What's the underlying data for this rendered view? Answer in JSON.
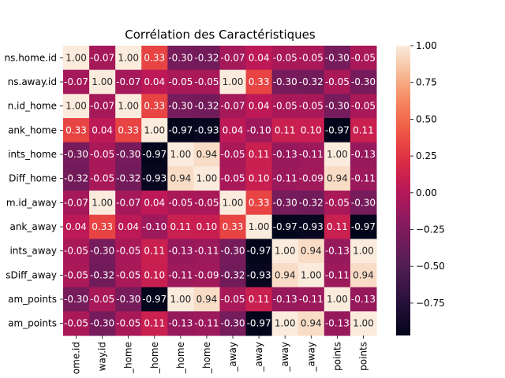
{
  "chart_data": {
    "type": "heatmap",
    "title": "Corrélation des Caractéristiques",
    "row_labels": [
      "ns.home.id",
      "ns.away.id",
      "n.id_home",
      "ank_home",
      "ints_home",
      "Diff_home",
      "m.id_away",
      "ank_away",
      "ints_away",
      "sDiff_away",
      "am_points",
      "am_points"
    ],
    "col_labels": [
      "ome.id",
      "way.id",
      "_home",
      "_home",
      "_home",
      "_home",
      "_away",
      "_away",
      "_away",
      "_away",
      "points",
      "points"
    ],
    "values": [
      [
        1.0,
        -0.07,
        1.0,
        0.33,
        -0.3,
        -0.32,
        -0.07,
        0.04,
        -0.05,
        -0.05,
        -0.3,
        -0.05
      ],
      [
        -0.07,
        1.0,
        -0.07,
        0.04,
        -0.05,
        -0.05,
        1.0,
        0.33,
        -0.3,
        -0.32,
        -0.05,
        -0.3
      ],
      [
        1.0,
        -0.07,
        1.0,
        0.33,
        -0.3,
        -0.32,
        -0.07,
        0.04,
        -0.05,
        -0.05,
        -0.3,
        -0.05
      ],
      [
        0.33,
        0.04,
        0.33,
        1.0,
        -0.97,
        -0.93,
        0.04,
        -0.1,
        0.11,
        0.1,
        -0.97,
        0.11
      ],
      [
        -0.3,
        -0.05,
        -0.3,
        -0.97,
        1.0,
        0.94,
        -0.05,
        0.11,
        -0.13,
        -0.11,
        1.0,
        -0.13
      ],
      [
        -0.32,
        -0.05,
        -0.32,
        -0.93,
        0.94,
        1.0,
        -0.05,
        0.1,
        -0.11,
        -0.09,
        0.94,
        -0.11
      ],
      [
        -0.07,
        1.0,
        -0.07,
        0.04,
        -0.05,
        -0.05,
        1.0,
        0.33,
        -0.3,
        -0.32,
        -0.05,
        -0.3
      ],
      [
        0.04,
        0.33,
        0.04,
        -0.1,
        0.11,
        0.1,
        0.33,
        1.0,
        -0.97,
        -0.93,
        0.11,
        -0.97
      ],
      [
        -0.05,
        -0.3,
        -0.05,
        0.11,
        -0.13,
        -0.11,
        -0.3,
        -0.97,
        1.0,
        0.94,
        -0.13,
        1.0
      ],
      [
        -0.05,
        -0.32,
        -0.05,
        0.1,
        -0.11,
        -0.09,
        -0.32,
        -0.93,
        0.94,
        1.0,
        -0.11,
        0.94
      ],
      [
        -0.3,
        -0.05,
        -0.3,
        -0.97,
        1.0,
        0.94,
        -0.05,
        0.11,
        -0.13,
        -0.11,
        1.0,
        -0.13
      ],
      [
        -0.05,
        -0.3,
        -0.05,
        0.11,
        -0.13,
        -0.11,
        -0.3,
        -0.97,
        1.0,
        0.94,
        -0.13,
        1.0
      ]
    ],
    "value_range": [
      -0.97,
      1.0
    ],
    "colorbar": {
      "ticks": [
        1.0,
        0.75,
        0.5,
        0.25,
        0.0,
        -0.25,
        -0.5,
        -0.75
      ],
      "tick_labels": [
        "1.00",
        "0.75",
        "0.50",
        "0.25",
        "0.00",
        "−0.25",
        "−0.50",
        "−0.75"
      ],
      "colormap": "rocket"
    },
    "grid": false,
    "legend": "colorbar-right"
  }
}
